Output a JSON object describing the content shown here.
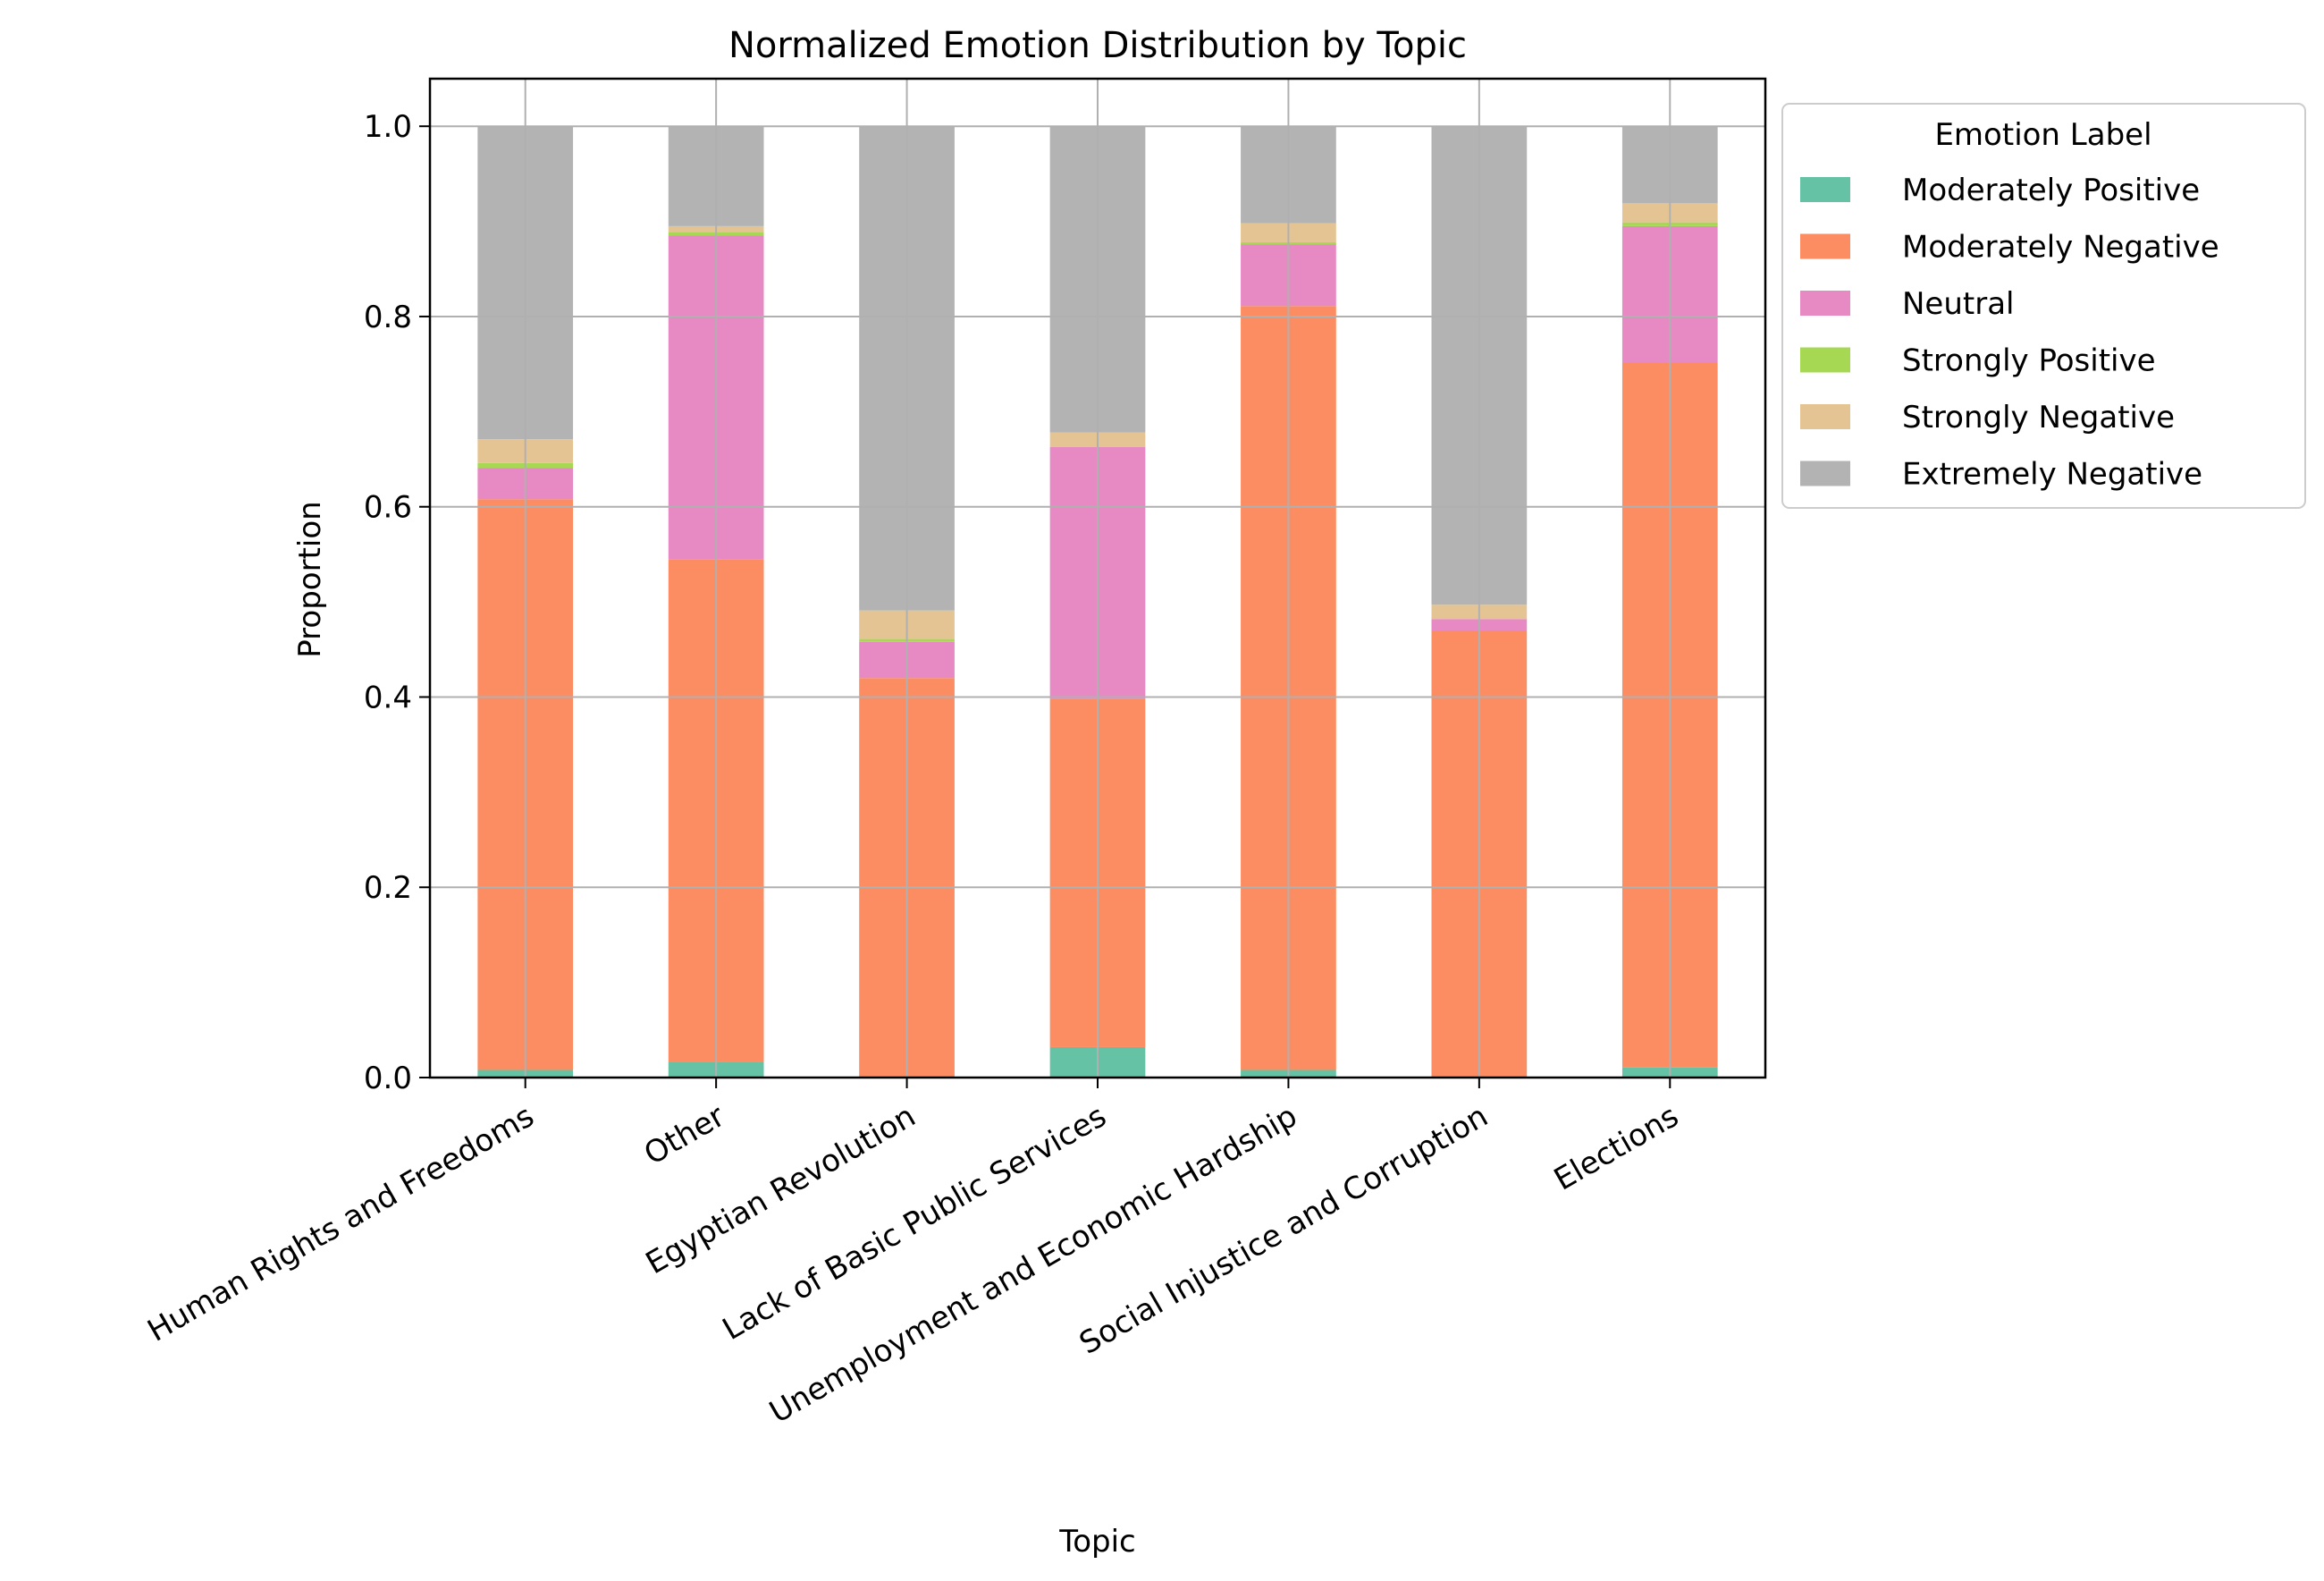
{
  "chart_data": {
    "type": "bar",
    "stacked": true,
    "title": "Normalized Emotion Distribution by Topic",
    "xlabel": "Topic",
    "ylabel": "Proportion",
    "ylim": [
      0,
      1.05
    ],
    "yticks": [
      0.0,
      0.2,
      0.4,
      0.6,
      0.8,
      1.0
    ],
    "ytick_labels": [
      "0.0",
      "0.2",
      "0.4",
      "0.6",
      "0.8",
      "1.0"
    ],
    "grid": true,
    "legend_title": "Emotion Label",
    "legend_position": "outside upper right",
    "categories": [
      "Human Rights and Freedoms",
      "Other",
      "Egyptian Revolution",
      "Lack of Basic Public Services",
      "Unemployment and Economic Hardship",
      "Social Injustice and Corruption",
      "Elections"
    ],
    "series": [
      {
        "name": "Moderately Positive",
        "color": "#66c2a5",
        "values": [
          0.008,
          0.016,
          0.0,
          0.032,
          0.008,
          0.0,
          0.011
        ]
      },
      {
        "name": "Moderately Negative",
        "color": "#fc8d62",
        "values": [
          0.6,
          0.529,
          0.42,
          0.366,
          0.803,
          0.47,
          0.741
        ]
      },
      {
        "name": "Neutral",
        "color": "#e78ac3",
        "values": [
          0.033,
          0.34,
          0.038,
          0.265,
          0.065,
          0.012,
          0.143
        ]
      },
      {
        "name": "Strongly Positive",
        "color": "#a6d854",
        "values": [
          0.005,
          0.004,
          0.003,
          0.0,
          0.002,
          0.0,
          0.004
        ]
      },
      {
        "name": "Strongly Negative",
        "color": "#e5c494",
        "values": [
          0.025,
          0.006,
          0.03,
          0.015,
          0.02,
          0.015,
          0.02
        ]
      },
      {
        "name": "Extremely Negative",
        "color": "#b3b3b3",
        "values": [
          0.329,
          0.105,
          0.509,
          0.322,
          0.102,
          0.503,
          0.081
        ]
      }
    ]
  }
}
